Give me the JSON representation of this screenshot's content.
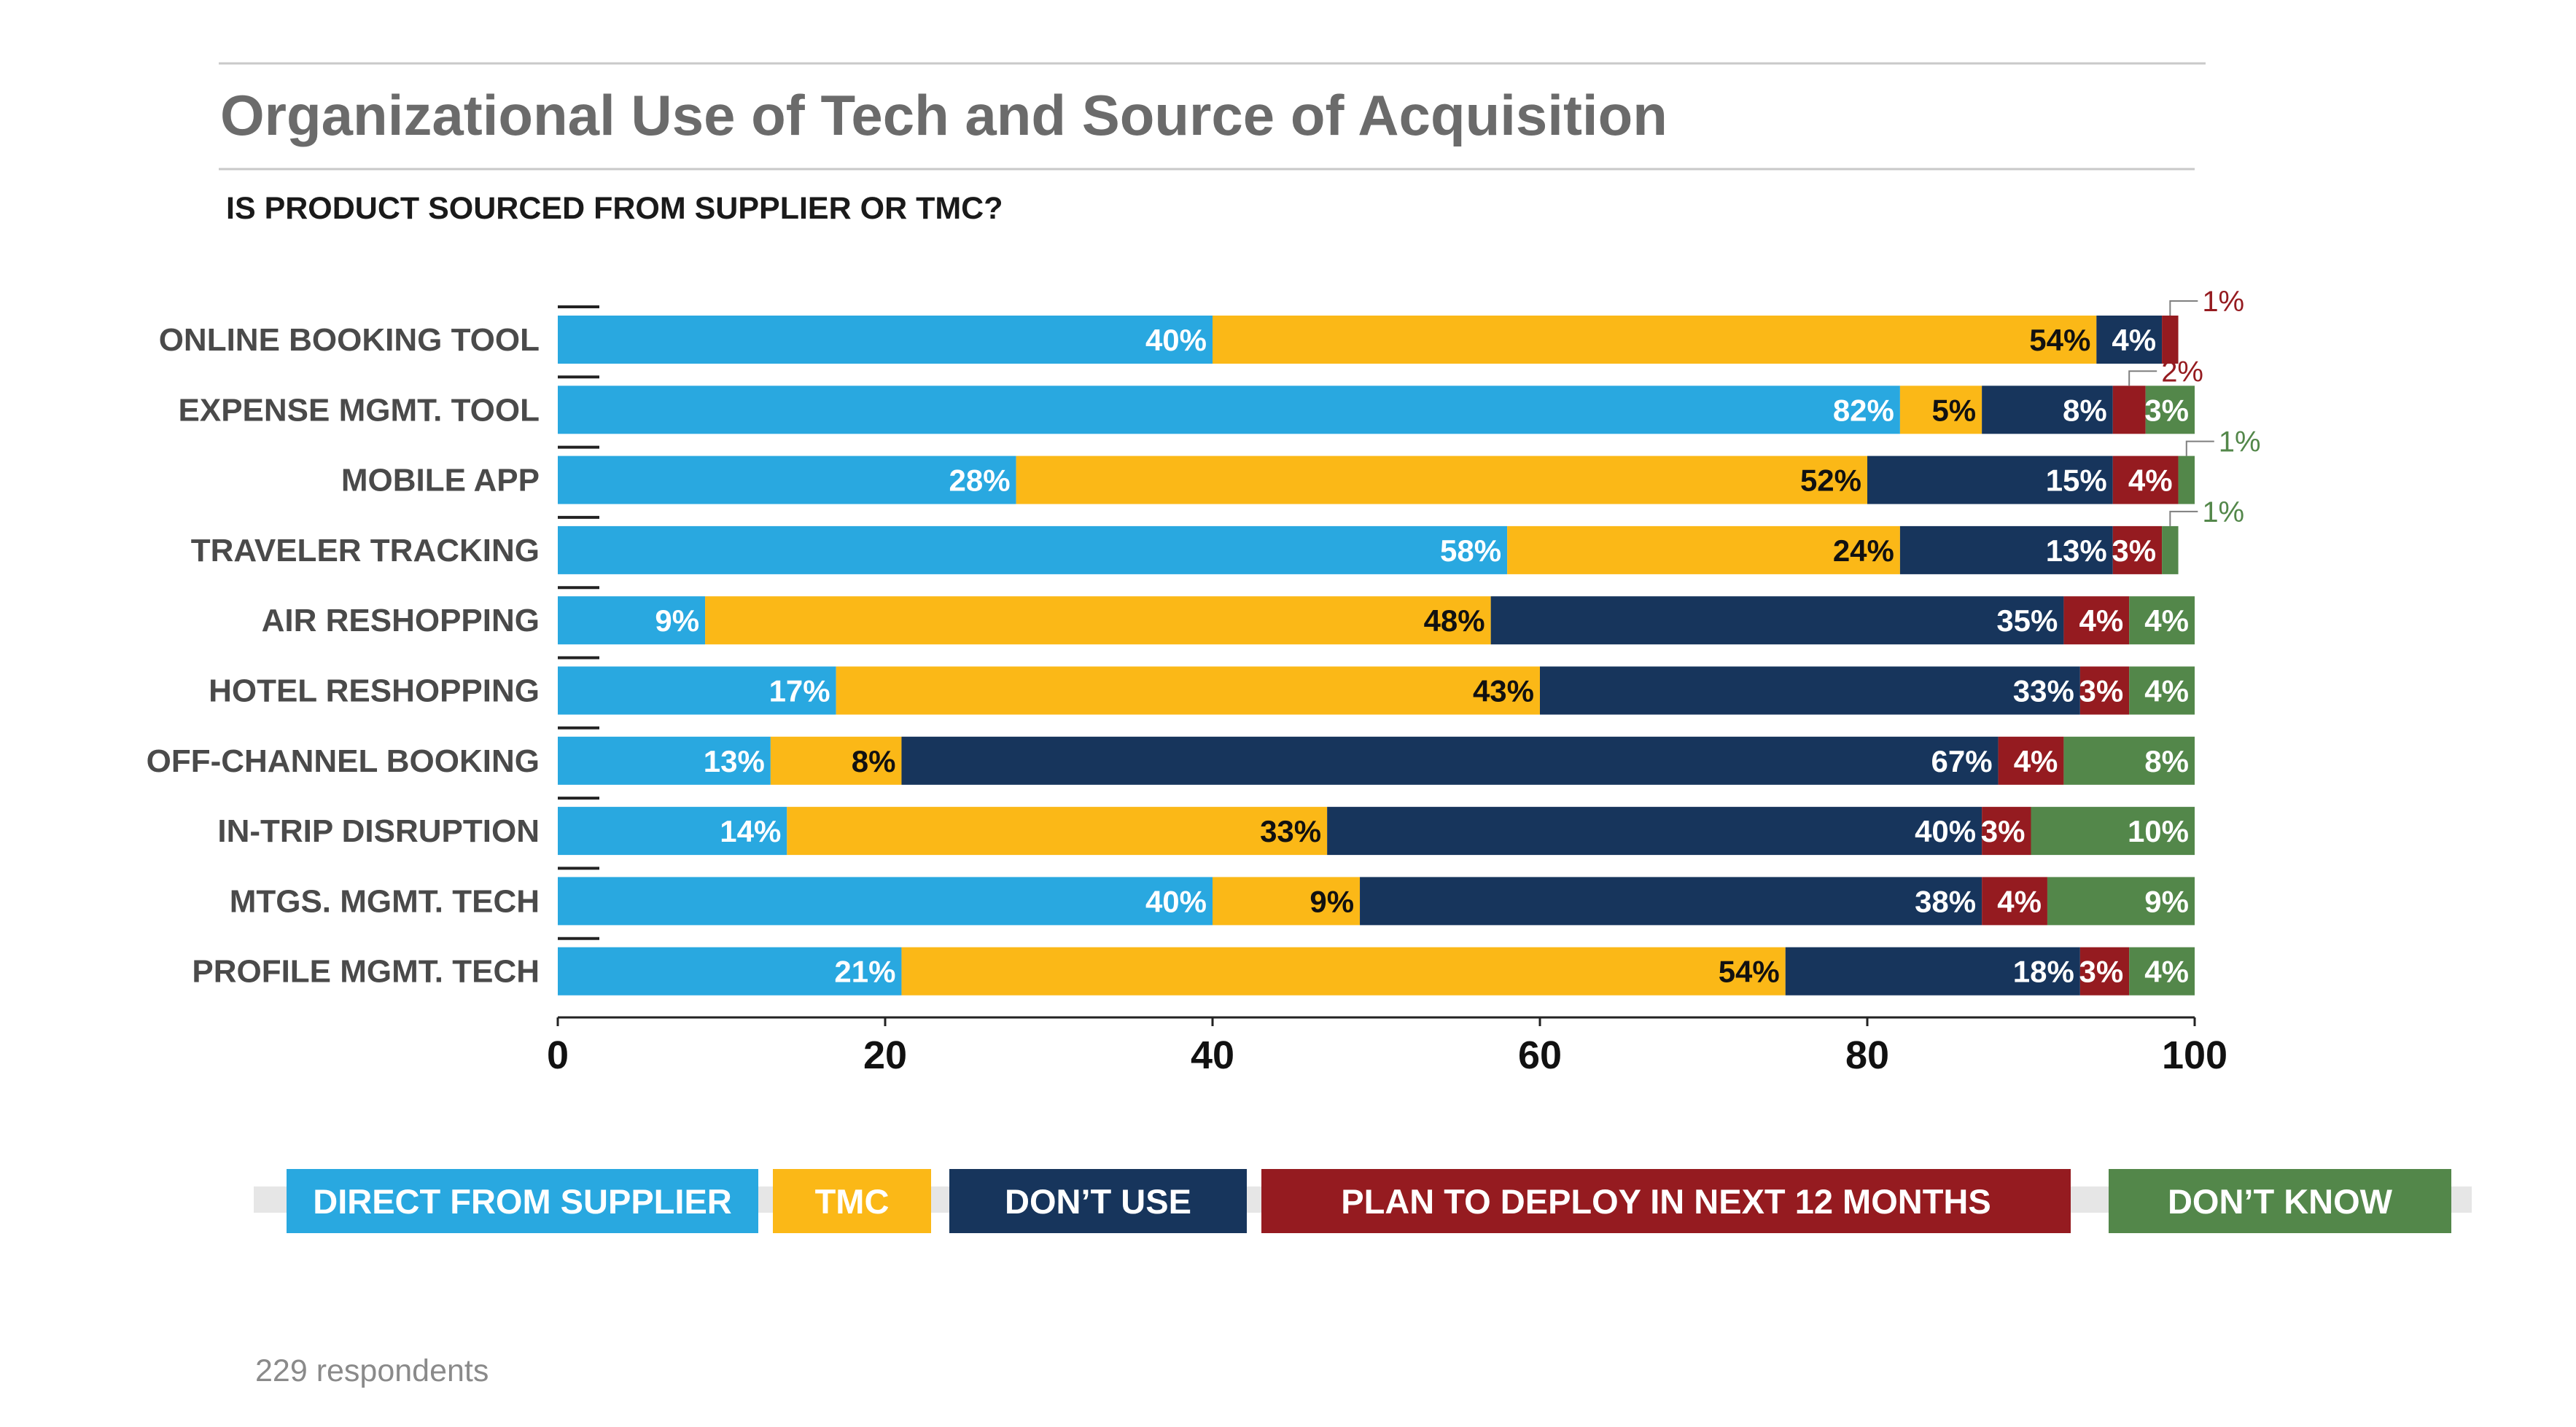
{
  "header": {
    "title": "Organizational Use of Tech and Source of Acquisition",
    "subtitle": "IS PRODUCT SOURCED FROM SUPPLIER OR TMC?"
  },
  "footer": {
    "respondents": "229 respondents"
  },
  "chart_data": {
    "type": "bar",
    "orientation": "horizontal",
    "stacked": true,
    "title": "Organizational Use of Tech and Source of Acquisition",
    "subtitle": "IS PRODUCT SOURCED FROM SUPPLIER OR TMC?",
    "categories": [
      "ONLINE BOOKING TOOL",
      "EXPENSE MGMT. TOOL",
      "MOBILE APP",
      "TRAVELER TRACKING",
      "AIR RESHOPPING",
      "HOTEL RESHOPPING",
      "OFF-CHANNEL BOOKING",
      "IN-TRIP DISRUPTION",
      "MTGS. MGMT. TECH",
      "PROFILE MGMT. TECH"
    ],
    "series": [
      {
        "name": "DIRECT FROM SUPPLIER",
        "color": "#29a8e0",
        "label_color": "#ffffff",
        "values": [
          40,
          82,
          28,
          58,
          9,
          17,
          13,
          14,
          40,
          21
        ]
      },
      {
        "name": "TMC",
        "color": "#fbb817",
        "label_color": "#111111",
        "values": [
          54,
          5,
          52,
          24,
          48,
          43,
          8,
          33,
          9,
          54
        ]
      },
      {
        "name": "DON’T USE",
        "color": "#17355c",
        "label_color": "#ffffff",
        "values": [
          4,
          8,
          15,
          13,
          35,
          33,
          67,
          40,
          38,
          18
        ]
      },
      {
        "name": "PLAN TO DEPLOY IN NEXT 12 MONTHS",
        "color": "#951b20",
        "label_color": "#ffffff",
        "values": [
          1,
          2,
          4,
          3,
          4,
          3,
          4,
          3,
          4,
          3
        ]
      },
      {
        "name": "DON’T KNOW",
        "color": "#53874a",
        "label_color": "#ffffff",
        "values": [
          0,
          3,
          1,
          1,
          4,
          4,
          8,
          10,
          9,
          4
        ]
      }
    ],
    "external_labels": [
      {
        "category_index": 0,
        "series_index": 3,
        "text": "1%",
        "color": "#951b20"
      },
      {
        "category_index": 1,
        "series_index": 3,
        "text": "2%",
        "color": "#951b20"
      },
      {
        "category_index": 2,
        "series_index": 4,
        "text": "1%",
        "color": "#53874a"
      },
      {
        "category_index": 3,
        "series_index": 4,
        "text": "1%",
        "color": "#53874a"
      }
    ],
    "xlim": [
      0,
      100
    ],
    "xticks": [
      0,
      20,
      40,
      60,
      80,
      100
    ],
    "legend_position": "bottom"
  }
}
